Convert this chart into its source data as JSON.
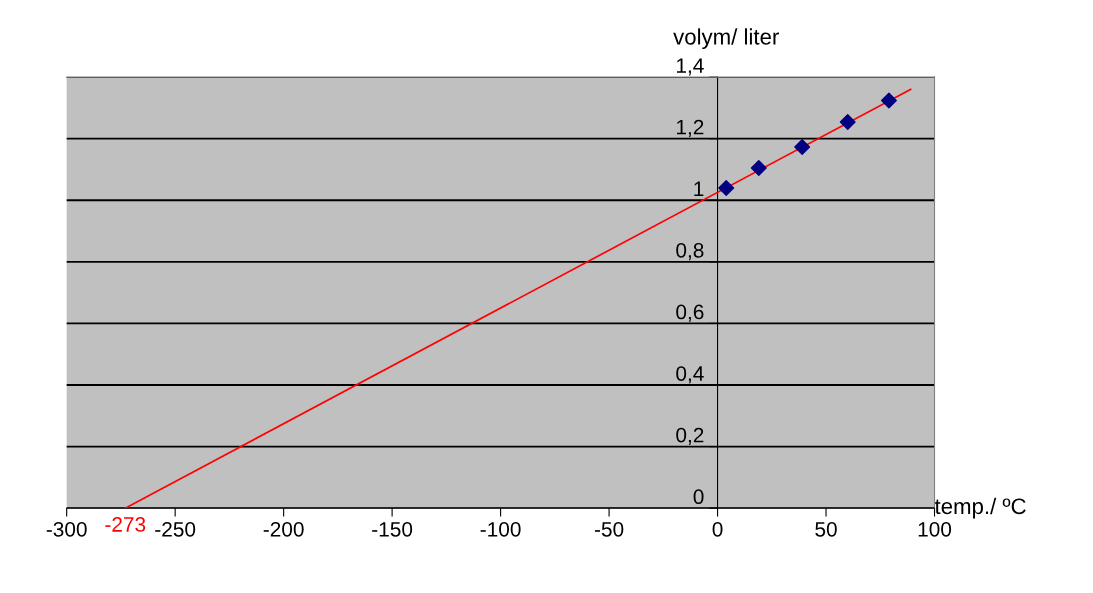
{
  "chart_data": {
    "type": "scatter",
    "xlabel": "temp./ ºC",
    "ylabel": "volym/ liter",
    "series": [
      {
        "color": "#000080",
        "marker": "diamond",
        "x": [
          4,
          19,
          39,
          60,
          79
        ],
        "values": [
          1.04,
          1.105,
          1.173,
          1.254,
          1.324
        ]
      },
      {
        "type": "line",
        "color": "#ff0000",
        "marker": "none",
        "x": [
          -273,
          89
        ],
        "values": [
          0,
          1.36
        ]
      }
    ],
    "xlim": [
      -300,
      100
    ],
    "xticks": [
      -300,
      -250,
      -200,
      -150,
      -100,
      -50,
      0,
      50,
      100
    ],
    "ylim": [
      0,
      1.4
    ],
    "yticks": [
      0,
      {
        "value": 0.2,
        "label": "0,2"
      },
      {
        "value": 0.4,
        "label": "0,4"
      },
      {
        "value": 0.6,
        "label": "0,6"
      },
      {
        "value": 0.8,
        "label": "0,8"
      },
      1,
      {
        "value": 1.2,
        "label": "1,2"
      },
      {
        "value": 1.4,
        "label": "1,4"
      }
    ],
    "grid": "y",
    "legend": false,
    "annotations": [
      {
        "text": "-273",
        "x": -273,
        "y": 0
      }
    ]
  }
}
